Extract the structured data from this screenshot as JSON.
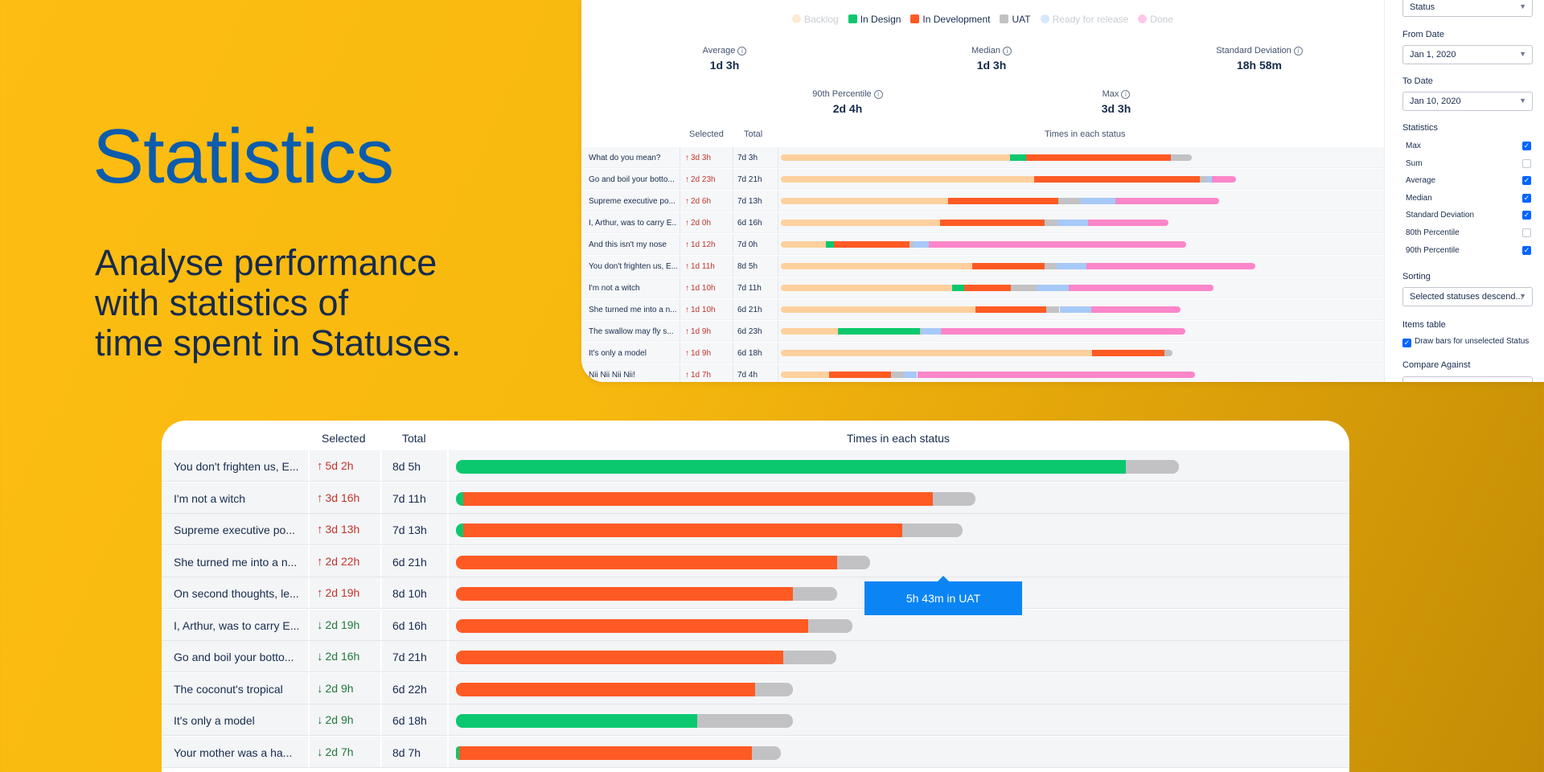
{
  "hero": {
    "title": "Statistics",
    "subtitle_lines": [
      "Analyse performance",
      "with statistics of",
      "time spent in Statuses."
    ]
  },
  "status_colors": {
    "Backlog": "#fdd09d",
    "In Design": "#0bc86e",
    "In Development": "#ff5a24",
    "UAT": "#c2c2c4",
    "Ready for release": "#a7c9f7",
    "Done": "#fb86c9"
  },
  "legend": [
    {
      "label": "Backlog",
      "active": false
    },
    {
      "label": "In Design",
      "active": true
    },
    {
      "label": "In Development",
      "active": true
    },
    {
      "label": "UAT",
      "active": true
    },
    {
      "label": "Ready for release",
      "active": false
    },
    {
      "label": "Done",
      "active": false
    }
  ],
  "stats": {
    "average": {
      "label": "Average",
      "value": "1d 3h"
    },
    "median": {
      "label": "Median",
      "value": "1d 3h"
    },
    "std_dev": {
      "label": "Standard Deviation",
      "value": "18h 58m"
    },
    "p90": {
      "label": "90th Percentile",
      "value": "2d 4h"
    },
    "max": {
      "label": "Max",
      "value": "3d 3h"
    }
  },
  "mini_table": {
    "headers": {
      "selected": "Selected",
      "total": "Total",
      "times": "Times in each status"
    },
    "rows": [
      {
        "name": "What do you mean?",
        "selected": "3d 3h",
        "total": "7d 3h",
        "segments": [
          [
            "Backlog",
            0.38
          ],
          [
            "In Design",
            0.027
          ],
          [
            "In Development",
            0.24
          ],
          [
            "UAT",
            0.035
          ]
        ]
      },
      {
        "name": "Go and boil your botto...",
        "selected": "2d 23h",
        "total": "7d 21h",
        "segments": [
          [
            "Backlog",
            0.42
          ],
          [
            "In Development",
            0.275
          ],
          [
            "UAT",
            0.012
          ],
          [
            "Ready for release",
            0.008
          ],
          [
            "Done",
            0.04
          ]
        ]
      },
      {
        "name": "Supreme executive po...",
        "selected": "2d 6h",
        "total": "7d 13h",
        "segments": [
          [
            "Backlog",
            0.277
          ],
          [
            "In Development",
            0.183
          ],
          [
            "UAT",
            0.037
          ],
          [
            "Ready for release",
            0.057
          ],
          [
            "Done",
            0.173
          ]
        ]
      },
      {
        "name": "I, Arthur, was to carry E...",
        "selected": "2d 0h",
        "total": "6d 16h",
        "segments": [
          [
            "Backlog",
            0.264
          ],
          [
            "In Development",
            0.173
          ],
          [
            "UAT",
            0.022
          ],
          [
            "Ready for release",
            0.05
          ],
          [
            "Done",
            0.133
          ]
        ]
      },
      {
        "name": "And this isn't my nose",
        "selected": "1d 12h",
        "total": "7d 0h",
        "segments": [
          [
            "Backlog",
            0.075
          ],
          [
            "In Design",
            0.013
          ],
          [
            "In Development",
            0.125
          ],
          [
            "UAT",
            0.007
          ],
          [
            "Ready for release",
            0.025
          ],
          [
            "Done",
            0.427
          ]
        ]
      },
      {
        "name": "You don't frighten us, E...",
        "selected": "1d 11h",
        "total": "8d 5h",
        "segments": [
          [
            "Backlog",
            0.317
          ],
          [
            "In Development",
            0.12
          ],
          [
            "UAT",
            0.02
          ],
          [
            "Ready for release",
            0.05
          ],
          [
            "Done",
            0.28
          ]
        ]
      },
      {
        "name": "I'm not a witch",
        "selected": "1d 10h",
        "total": "7d 11h",
        "segments": [
          [
            "Backlog",
            0.284
          ],
          [
            "In Design",
            0.02
          ],
          [
            "In Development",
            0.077
          ],
          [
            "UAT",
            0.043
          ],
          [
            "Ready for release",
            0.053
          ],
          [
            "Done",
            0.24
          ]
        ]
      },
      {
        "name": "She turned me into a n...",
        "selected": "1d 10h",
        "total": "6d 21h",
        "segments": [
          [
            "Backlog",
            0.322
          ],
          [
            "In Development",
            0.118
          ],
          [
            "UAT",
            0.022
          ],
          [
            "Ready for release",
            0.053
          ],
          [
            "Done",
            0.147
          ]
        ]
      },
      {
        "name": "The swallow may fly s...",
        "selected": "1d 9h",
        "total": "6d 23h",
        "segments": [
          [
            "Backlog",
            0.095
          ],
          [
            "In Design",
            0.135
          ],
          [
            "UAT",
            0.003
          ],
          [
            "Ready for release",
            0.032
          ],
          [
            "Done",
            0.405
          ]
        ]
      },
      {
        "name": "It's only a model",
        "selected": "1d 9h",
        "total": "6d 18h",
        "segments": [
          [
            "Backlog",
            0.516
          ],
          [
            "In Development",
            0.12
          ],
          [
            "UAT",
            0.013
          ]
        ]
      },
      {
        "name": "Nii Nii Nii Nii!",
        "selected": "1d 7h",
        "total": "7d 4h",
        "segments": [
          [
            "Backlog",
            0.08
          ],
          [
            "In Development",
            0.102
          ],
          [
            "UAT",
            0.022
          ],
          [
            "Ready for release",
            0.022
          ],
          [
            "Done",
            0.46
          ]
        ]
      }
    ]
  },
  "sidebar": {
    "group_by_value": "Status",
    "from_label": "From Date",
    "from_value": "Jan 1, 2020",
    "to_label": "To Date",
    "to_value": "Jan 10, 2020",
    "statistics_label": "Statistics",
    "statistics": [
      {
        "label": "Max",
        "checked": true
      },
      {
        "label": "Sum",
        "checked": false
      },
      {
        "label": "Average",
        "checked": true
      },
      {
        "label": "Median",
        "checked": true
      },
      {
        "label": "Standard Deviation",
        "checked": true
      },
      {
        "label": "80th Percentile",
        "checked": false
      },
      {
        "label": "90th Percentile",
        "checked": true
      }
    ],
    "sorting_label": "Sorting",
    "sorting_value": "Selected statuses descend...",
    "items_table_label": "Items table",
    "draw_bars_label": "Draw bars for unselected Status",
    "draw_bars_checked": true,
    "compare_label": "Compare Against"
  },
  "big_table": {
    "headers": {
      "selected": "Selected",
      "total": "Total",
      "times": "Times in each status"
    },
    "tooltip": "5h 43m in UAT",
    "rows": [
      {
        "name": "You don't frighten us, E...",
        "direction": "up",
        "selected": "5d 2h",
        "total": "8d 5h",
        "segments": [
          [
            "In Design",
            0.755
          ],
          [
            "UAT",
            0.06
          ]
        ]
      },
      {
        "name": "I'm not a witch",
        "direction": "up",
        "selected": "3d 16h",
        "total": "7d 11h",
        "segments": [
          [
            "In Design",
            0.008
          ],
          [
            "In Development",
            0.53
          ],
          [
            "UAT",
            0.048
          ]
        ]
      },
      {
        "name": "Supreme executive po...",
        "direction": "up",
        "selected": "3d 13h",
        "total": "7d 13h",
        "segments": [
          [
            "In Design",
            0.008
          ],
          [
            "In Development",
            0.495
          ],
          [
            "UAT",
            0.068
          ]
        ]
      },
      {
        "name": "She turned me into a n...",
        "direction": "up",
        "selected": "2d 22h",
        "total": "6d 21h",
        "segments": [
          [
            "In Development",
            0.43
          ],
          [
            "UAT",
            0.037
          ]
        ]
      },
      {
        "name": "On second thoughts, le...",
        "direction": "up",
        "selected": "2d 19h",
        "total": "8d 10h",
        "segments": [
          [
            "In Development",
            0.38
          ],
          [
            "UAT",
            0.05
          ]
        ]
      },
      {
        "name": "I, Arthur, was to carry E...",
        "direction": "down",
        "selected": "2d 19h",
        "total": "6d 16h",
        "segments": [
          [
            "In Development",
            0.397
          ],
          [
            "UAT",
            0.05
          ]
        ]
      },
      {
        "name": "Go and boil your botto...",
        "direction": "down",
        "selected": "2d 16h",
        "total": "7d 21h",
        "segments": [
          [
            "In Development",
            0.369
          ],
          [
            "UAT",
            0.06
          ]
        ]
      },
      {
        "name": "The coconut's tropical",
        "direction": "down",
        "selected": "2d 9h",
        "total": "6d 22h",
        "segments": [
          [
            "In Development",
            0.337
          ],
          [
            "UAT",
            0.043
          ]
        ]
      },
      {
        "name": "It's only a model",
        "direction": "down",
        "selected": "2d 9h",
        "total": "6d 18h",
        "segments": [
          [
            "In Design",
            0.272
          ],
          [
            "UAT",
            0.108
          ]
        ]
      },
      {
        "name": "Your mother was a ha...",
        "direction": "down",
        "selected": "2d 7h",
        "total": "8d 7h",
        "segments": [
          [
            "In Design",
            0.004
          ],
          [
            "In Development",
            0.33
          ],
          [
            "UAT",
            0.032
          ]
        ]
      }
    ]
  }
}
